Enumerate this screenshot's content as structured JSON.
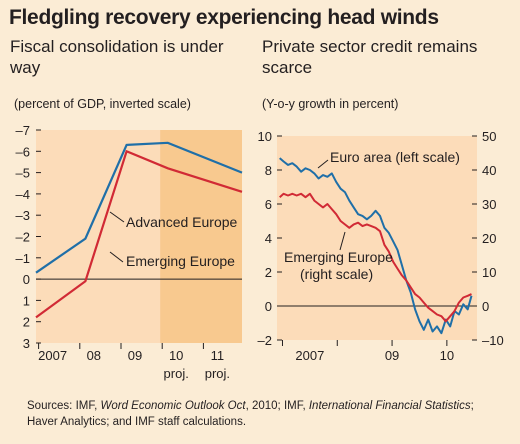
{
  "title": "Fledgling recovery experiencing head winds",
  "chart_data": [
    {
      "type": "line",
      "title": "Fiscal consolidation is under way",
      "subtitle": "(percent of GDP, inverted scale)",
      "inverted_y": true,
      "ylim": [
        3,
        -7
      ],
      "yticks": [
        3,
        2,
        1,
        0,
        -1,
        -2,
        -3,
        -4,
        -5,
        -6,
        -7
      ],
      "ytick_labels": [
        "3",
        "2",
        "1",
        "0",
        "–1",
        "–2",
        "–3",
        "–4",
        "–5",
        "–6",
        "–7"
      ],
      "xlim": [
        2006.8,
        2011.8
      ],
      "xticks": [
        {
          "x": 2007.3,
          "label": "2007",
          "sub": ""
        },
        {
          "x": 2008.3,
          "label": "08",
          "sub": ""
        },
        {
          "x": 2009.3,
          "label": "09",
          "sub": ""
        },
        {
          "x": 2010.3,
          "label": "10",
          "sub": "proj."
        },
        {
          "x": 2011.3,
          "label": "11",
          "sub": "proj."
        }
      ],
      "projection_start": 2010.3,
      "series": [
        {
          "name": "Advanced Europe",
          "color": "#1f6fa8",
          "x": [
            2006.8,
            2008.0,
            2009.0,
            2010.0,
            2011.8
          ],
          "y": [
            -0.3,
            -1.9,
            -6.3,
            -6.4,
            -5.0
          ]
        },
        {
          "name": "Emerging Europe",
          "color": "#d12a35",
          "x": [
            2006.8,
            2008.0,
            2009.0,
            2010.0,
            2011.8
          ],
          "y": [
            1.8,
            0.1,
            -6.0,
            -5.2,
            -4.1
          ]
        }
      ]
    },
    {
      "type": "line",
      "title": "Private sector credit remains scarce",
      "subtitle": "(Y-o-y growth in percent)",
      "ylim_left": [
        -2,
        10
      ],
      "yticks_left": [
        -2,
        0,
        2,
        4,
        6,
        8,
        10
      ],
      "ytick_labels_left": [
        "–2",
        "0",
        "2",
        "4",
        "6",
        "8",
        "10"
      ],
      "ylim_right": [
        -10,
        50
      ],
      "yticks_right": [
        -10,
        0,
        10,
        20,
        30,
        40,
        50
      ],
      "ytick_labels_right": [
        "–10",
        "0",
        "10",
        "20",
        "30",
        "40",
        "50"
      ],
      "xlim": [
        2006.9,
        2010.55
      ],
      "xticks": [
        {
          "x": 2007.5,
          "label": "2007"
        },
        {
          "x": 2009.0,
          "label": "09"
        },
        {
          "x": 2010.0,
          "label": "10"
        }
      ],
      "series": [
        {
          "name": "Euro area (left scale)",
          "color": "#1f6fa8",
          "axis": "left",
          "x": [
            2006.95,
            2007.02,
            2007.1,
            2007.18,
            2007.26,
            2007.34,
            2007.42,
            2007.5,
            2007.58,
            2007.66,
            2007.74,
            2007.82,
            2007.9,
            2007.98,
            2008.06,
            2008.14,
            2008.22,
            2008.3,
            2008.38,
            2008.46,
            2008.54,
            2008.62,
            2008.7,
            2008.78,
            2008.86,
            2008.94,
            2009.02,
            2009.1,
            2009.18,
            2009.26,
            2009.34,
            2009.42,
            2009.5,
            2009.58,
            2009.66,
            2009.74,
            2009.82,
            2009.9,
            2009.98,
            2010.06,
            2010.14,
            2010.22,
            2010.3,
            2010.38,
            2010.45
          ],
          "y": [
            8.7,
            8.5,
            8.3,
            8.4,
            8.2,
            7.9,
            8.1,
            8.0,
            7.8,
            7.5,
            7.7,
            7.6,
            7.8,
            7.3,
            6.9,
            6.7,
            6.2,
            5.8,
            5.4,
            5.3,
            5.1,
            5.3,
            5.6,
            5.3,
            4.6,
            4.3,
            3.8,
            3.3,
            2.4,
            1.5,
            0.8,
            -0.2,
            -0.9,
            -1.4,
            -0.8,
            -1.5,
            -1.2,
            -1.6,
            -0.8,
            -1.2,
            -0.3,
            -0.5,
            0.1,
            -0.2,
            0.6
          ]
        },
        {
          "name": "Emerging Europe (right scale)",
          "color": "#d12a35",
          "axis": "right",
          "x": [
            2006.95,
            2007.02,
            2007.1,
            2007.18,
            2007.26,
            2007.34,
            2007.42,
            2007.5,
            2007.58,
            2007.66,
            2007.74,
            2007.82,
            2007.9,
            2007.98,
            2008.06,
            2008.14,
            2008.22,
            2008.3,
            2008.38,
            2008.46,
            2008.54,
            2008.62,
            2008.7,
            2008.78,
            2008.86,
            2008.94,
            2009.02,
            2009.1,
            2009.18,
            2009.26,
            2009.34,
            2009.42,
            2009.5,
            2009.58,
            2009.66,
            2009.74,
            2009.82,
            2009.9,
            2009.98,
            2010.06,
            2010.14,
            2010.22,
            2010.3,
            2010.38,
            2010.45
          ],
          "y": [
            32,
            33,
            32.5,
            33,
            32.5,
            33,
            32,
            33,
            31,
            30,
            29,
            30,
            28.5,
            27,
            25,
            24,
            23,
            24,
            24.5,
            23.5,
            24,
            23.5,
            23,
            22,
            18,
            16,
            13,
            11,
            9,
            7.5,
            5.5,
            3.5,
            2.5,
            1,
            -0.5,
            -1.5,
            -2.5,
            -3,
            -4.5,
            -3,
            -1.5,
            1,
            2.5,
            3,
            3.5
          ]
        }
      ]
    }
  ],
  "annotations": {
    "left_advanced": "Advanced Europe",
    "left_emerging": "Emerging Europe",
    "right_euro": "Euro area (left scale)",
    "right_emerging_1": "Emerging Europe",
    "right_emerging_2": "(right scale)"
  },
  "sources": {
    "lead": "Sources: IMF, ",
    "weo": "Word Economic Outlook Oct",
    "mid": ", 2010; IMF, ",
    "ifs": "International Financial Statistics",
    "tail": "; Haver Analytics; and IMF staff calculations."
  },
  "colors": {
    "background": "#fbecd5",
    "plot_bg": "#fcdcb9",
    "projection_bg": "#f8c98f",
    "blue": "#1f6fa8",
    "red": "#d12a35"
  }
}
